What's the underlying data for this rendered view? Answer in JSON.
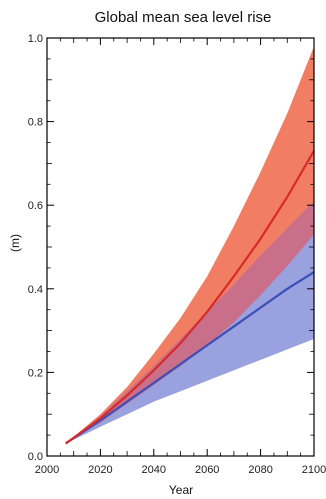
{
  "chart_data": {
    "type": "area",
    "title": "Global mean sea level rise",
    "xlabel": "Year",
    "ylabel": "(m)",
    "xlim": [
      2000,
      2100
    ],
    "ylim": [
      0,
      1.0
    ],
    "x_ticks": [
      2000,
      2020,
      2040,
      2060,
      2080,
      2100
    ],
    "y_ticks": [
      0.0,
      0.2,
      0.4,
      0.6,
      0.8,
      1.0
    ],
    "x_tick_labels": [
      "2000",
      "2020",
      "2040",
      "2060",
      "2080",
      "2100"
    ],
    "y_tick_labels": [
      "0.0",
      "0.2",
      "0.4",
      "0.6",
      "0.8",
      "1.0"
    ],
    "grid": false,
    "x": [
      2007,
      2020,
      2030,
      2040,
      2050,
      2060,
      2070,
      2080,
      2090,
      2100
    ],
    "series": [
      {
        "color": "#f0765a",
        "line_color": "#d92a2a",
        "values": [
          0.03,
          0.09,
          0.145,
          0.205,
          0.27,
          0.345,
          0.43,
          0.52,
          0.62,
          0.73
        ],
        "lower": [
          0.03,
          0.08,
          0.125,
          0.17,
          0.215,
          0.265,
          0.32,
          0.385,
          0.455,
          0.53
        ],
        "upper": [
          0.03,
          0.1,
          0.165,
          0.245,
          0.33,
          0.43,
          0.55,
          0.68,
          0.82,
          0.98
        ]
      },
      {
        "color": "#7f8ad6",
        "line_color": "#3c4fb8",
        "values": [
          0.03,
          0.085,
          0.13,
          0.175,
          0.22,
          0.265,
          0.31,
          0.355,
          0.4,
          0.44
        ],
        "lower": [
          0.03,
          0.07,
          0.1,
          0.13,
          0.155,
          0.18,
          0.205,
          0.23,
          0.255,
          0.28
        ],
        "upper": [
          0.03,
          0.095,
          0.155,
          0.215,
          0.28,
          0.345,
          0.41,
          0.48,
          0.545,
          0.61
        ]
      }
    ],
    "overlap_color": "#cf6d84"
  }
}
